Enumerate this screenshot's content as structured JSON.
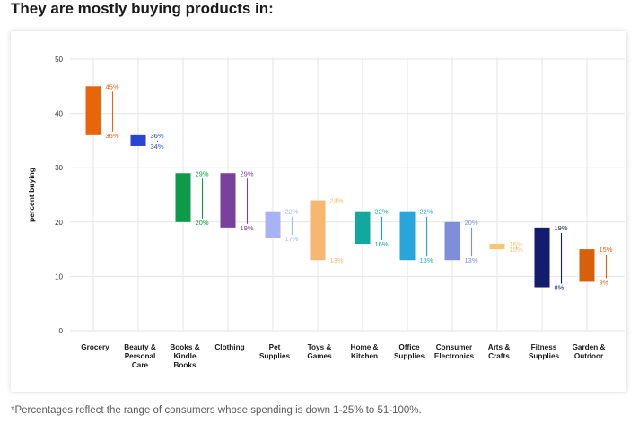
{
  "heading": "They are mostly buying products in:",
  "footnote": "*Percentages reflect the range of consumers whose spending is down 1-25% to 51-100%.",
  "chart_data": {
    "type": "bar",
    "subtype": "floating-range",
    "ylabel": "percent buying",
    "ylim": [
      0,
      50
    ],
    "yticks": [
      0,
      10,
      20,
      30,
      40,
      50
    ],
    "grid": true,
    "categories": [
      {
        "label": "Grocery",
        "low": 36,
        "high": 45,
        "color": "#e8650a"
      },
      {
        "label": "Beauty & Personal Care",
        "low": 34,
        "high": 36,
        "color": "#2945d4"
      },
      {
        "label": "Books & Kindle Books",
        "low": 20,
        "high": 29,
        "color": "#0d9b4a"
      },
      {
        "label": "Clothing",
        "low": 19,
        "high": 29,
        "color": "#7b3f9e"
      },
      {
        "label": "Pet Supplies",
        "low": 17,
        "high": 22,
        "color": "#a8b2f5"
      },
      {
        "label": "Toys & Games",
        "low": 13,
        "high": 24,
        "color": "#f6b870"
      },
      {
        "label": "Home & Kitchen",
        "low": 16,
        "high": 22,
        "color": "#13a89e"
      },
      {
        "label": "Office Supplies",
        "low": 13,
        "high": 22,
        "color": "#27a6dc"
      },
      {
        "label": "Consumer Electronics",
        "low": 13,
        "high": 20,
        "color": "#7e8fd8"
      },
      {
        "label": "Arts & Crafts",
        "low": 15,
        "high": 16,
        "color": "#f8c672"
      },
      {
        "label": "Fitness Supplies",
        "low": 8,
        "high": 19,
        "color": "#141c6e"
      },
      {
        "label": "Garden & Outdoor",
        "low": 9,
        "high": 15,
        "color": "#d9600a"
      }
    ],
    "label_suffix": "%",
    "colors": {
      "grid": "#e6e6e6",
      "axis_text": "#333333"
    }
  }
}
